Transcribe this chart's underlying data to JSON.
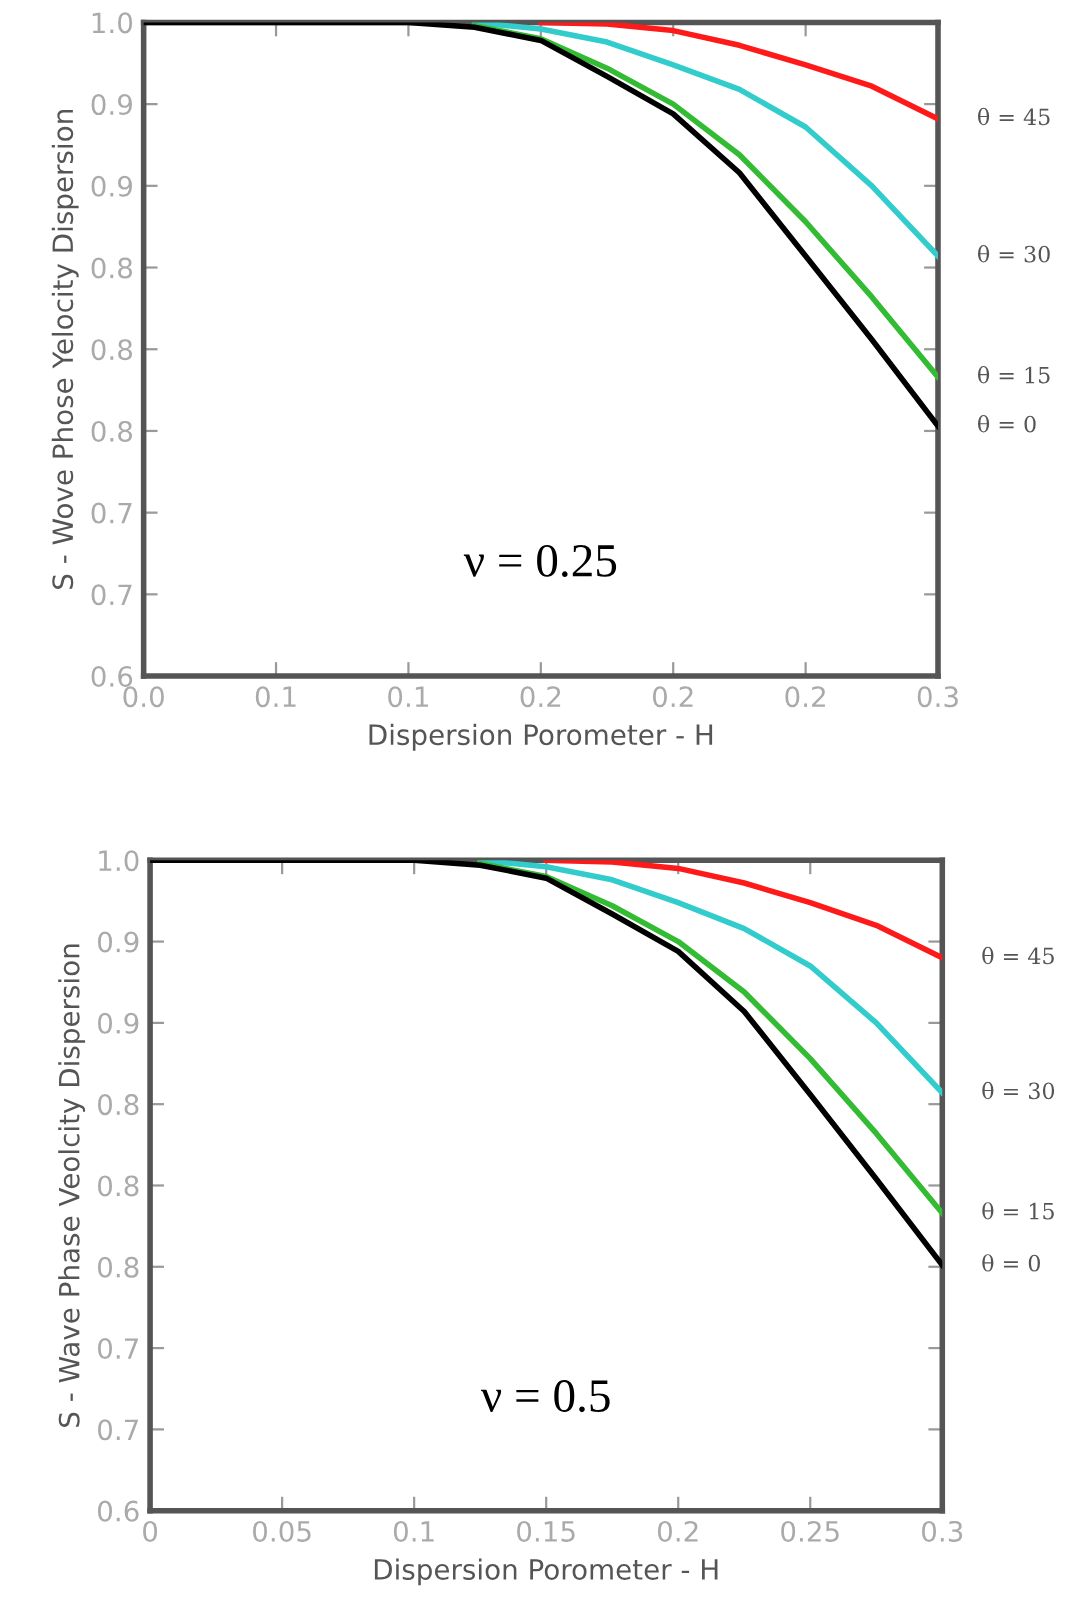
{
  "chart_data": [
    {
      "type": "line",
      "xlabel": "Dispersion Porometer - H",
      "ylabel": "S - Wove Phose Yelocity Dispersion",
      "annotations": [
        "ν = 0.25"
      ],
      "xlim": [
        0,
        0.3
      ],
      "ylim": [
        0.6,
        1.0
      ],
      "xticks": [
        {
          "value": 0,
          "label": "0.0"
        },
        {
          "value": 0.05,
          "label": "0.1"
        },
        {
          "value": 0.1,
          "label": "0.1"
        },
        {
          "value": 0.15,
          "label": "0.2"
        },
        {
          "value": 0.2,
          "label": "0.2"
        },
        {
          "value": 0.25,
          "label": "0.2"
        },
        {
          "value": 0.3,
          "label": "0.3"
        }
      ],
      "yticks": [
        0.6,
        {
          "value": 0.65,
          "label": "0.7"
        },
        0.7,
        {
          "value": 0.75,
          "label": "0.8"
        },
        0.8,
        {
          "value": 0.85,
          "label": "0.8"
        },
        0.9,
        {
          "value": 0.95,
          "label": "0.9"
        },
        {
          "value": 1.0,
          "label": "1.0"
        }
      ],
      "x": [
        0,
        0.05,
        0.1,
        0.125,
        0.15,
        0.175,
        0.2,
        0.225,
        0.25,
        0.275,
        0.3
      ],
      "grid": false,
      "legend": false,
      "marker": "none",
      "line_style": "solid",
      "series": [
        {
          "name": "θ = 45",
          "color": "#ff1a1a",
          "values": [
            null,
            null,
            null,
            null,
            1.0,
            0.999,
            0.995,
            0.986,
            0.974,
            0.961,
            0.941
          ]
        },
        {
          "name": "θ = 30",
          "color": "#33cccc",
          "values": [
            null,
            null,
            null,
            1.0,
            0.996,
            0.988,
            0.974,
            0.959,
            0.936,
            0.9,
            0.857
          ]
        },
        {
          "name": "θ = 15",
          "color": "#33bb33",
          "values": [
            null,
            null,
            null,
            0.998,
            0.99,
            0.972,
            0.95,
            0.919,
            0.878,
            0.832,
            0.783
          ]
        },
        {
          "name": "θ = 0",
          "color": "#000000",
          "values": [
            1.0,
            1.0,
            1.0,
            0.997,
            0.989,
            0.967,
            0.944,
            0.908,
            0.857,
            0.806,
            0.753
          ]
        }
      ]
    },
    {
      "type": "line",
      "xlabel": "Dispersion Porometer - H",
      "ylabel": "S - Wave Phase Veolcity Dispersion",
      "annotations": [
        "ν = 0.5"
      ],
      "xlim": [
        0,
        0.3
      ],
      "ylim": [
        0.6,
        1.0
      ],
      "xticks": [
        0,
        0.05,
        0.1,
        0.15,
        0.2,
        0.25,
        0.3
      ],
      "yticks": [
        0.6,
        {
          "value": 0.65,
          "label": "0.7"
        },
        0.7,
        {
          "value": 0.75,
          "label": "0.8"
        },
        0.8,
        {
          "value": 0.85,
          "label": "0.8"
        },
        0.9,
        {
          "value": 0.95,
          "label": "0.9"
        },
        {
          "value": 1.0,
          "label": "1.0"
        }
      ],
      "x": [
        0,
        0.05,
        0.1,
        0.125,
        0.15,
        0.175,
        0.2,
        0.225,
        0.25,
        0.275,
        0.3
      ],
      "grid": false,
      "legend": false,
      "marker": "none",
      "line_style": "solid",
      "series": [
        {
          "name": "θ = 45",
          "color": "#ff1a1a",
          "values": [
            null,
            null,
            null,
            null,
            1.0,
            0.999,
            0.995,
            0.986,
            0.974,
            0.96,
            0.94
          ]
        },
        {
          "name": "θ = 30",
          "color": "#33cccc",
          "values": [
            null,
            null,
            null,
            1.0,
            0.996,
            0.988,
            0.974,
            0.958,
            0.935,
            0.9,
            0.857
          ]
        },
        {
          "name": "θ = 15",
          "color": "#33bb33",
          "values": [
            null,
            null,
            null,
            0.998,
            0.99,
            0.972,
            0.95,
            0.919,
            0.878,
            0.832,
            0.783
          ]
        },
        {
          "name": "θ = 0",
          "color": "#000000",
          "values": [
            1.0,
            1.0,
            1.0,
            0.997,
            0.989,
            0.967,
            0.944,
            0.907,
            0.856,
            0.804,
            0.751
          ]
        }
      ]
    }
  ]
}
